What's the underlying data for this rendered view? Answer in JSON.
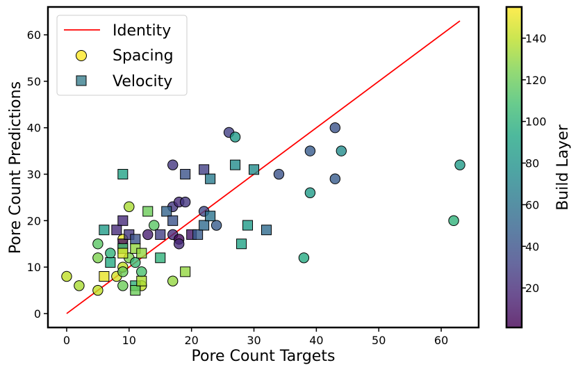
{
  "chart_data": {
    "type": "scatter",
    "xlabel": "Pore Count Targets",
    "ylabel": "Pore Count Predictions",
    "xlim": [
      -3,
      66
    ],
    "ylim": [
      -3,
      66
    ],
    "xticks": [
      0,
      10,
      20,
      30,
      40,
      50,
      60
    ],
    "yticks": [
      0,
      10,
      20,
      30,
      40,
      50,
      60
    ],
    "grid": false,
    "legend_position": "top-left",
    "identity_line": {
      "name": "Identity",
      "x": [
        0,
        63
      ],
      "y": [
        0,
        63
      ],
      "color": "#ff0000"
    },
    "colorbar": {
      "label": "Build Layer",
      "range": [
        1,
        155
      ],
      "ticks": [
        20,
        40,
        60,
        80,
        100,
        120,
        140
      ],
      "colormap": "viridis"
    },
    "legend": [
      {
        "name": "Identity",
        "symbol": "line",
        "color": "#ff0000"
      },
      {
        "name": "Spacing",
        "symbol": "circle",
        "color": "#fde725"
      },
      {
        "name": "Velocity",
        "symbol": "square",
        "color": "#3b7f8f"
      }
    ],
    "series": [
      {
        "name": "Spacing",
        "marker": "circle",
        "points": [
          {
            "x": 0,
            "y": 8,
            "layer": 140
          },
          {
            "x": 2,
            "y": 6,
            "layer": 135
          },
          {
            "x": 5,
            "y": 15,
            "layer": 115
          },
          {
            "x": 5,
            "y": 12,
            "layer": 125
          },
          {
            "x": 5,
            "y": 5,
            "layer": 140
          },
          {
            "x": 7,
            "y": 13,
            "layer": 100
          },
          {
            "x": 8,
            "y": 8,
            "layer": 145
          },
          {
            "x": 9,
            "y": 16,
            "layer": 150
          },
          {
            "x": 9,
            "y": 10,
            "layer": 140
          },
          {
            "x": 9,
            "y": 9,
            "layer": 120
          },
          {
            "x": 9,
            "y": 6,
            "layer": 120
          },
          {
            "x": 10,
            "y": 23,
            "layer": 135
          },
          {
            "x": 10,
            "y": 12,
            "layer": 125
          },
          {
            "x": 11,
            "y": 11,
            "layer": 105
          },
          {
            "x": 12,
            "y": 9,
            "layer": 110
          },
          {
            "x": 12,
            "y": 6,
            "layer": 140
          },
          {
            "x": 13,
            "y": 17,
            "layer": 15
          },
          {
            "x": 14,
            "y": 19,
            "layer": 115
          },
          {
            "x": 17,
            "y": 32,
            "layer": 25
          },
          {
            "x": 17,
            "y": 23,
            "layer": 25
          },
          {
            "x": 17,
            "y": 17,
            "layer": 20
          },
          {
            "x": 17,
            "y": 7,
            "layer": 130
          },
          {
            "x": 18,
            "y": 24,
            "layer": 20
          },
          {
            "x": 18,
            "y": 16,
            "layer": 5
          },
          {
            "x": 18,
            "y": 15,
            "layer": 20
          },
          {
            "x": 19,
            "y": 24,
            "layer": 25
          },
          {
            "x": 22,
            "y": 22,
            "layer": 35
          },
          {
            "x": 24,
            "y": 19,
            "layer": 45
          },
          {
            "x": 26,
            "y": 39,
            "layer": 30
          },
          {
            "x": 27,
            "y": 38,
            "layer": 85
          },
          {
            "x": 34,
            "y": 30,
            "layer": 40
          },
          {
            "x": 38,
            "y": 12,
            "layer": 95
          },
          {
            "x": 39,
            "y": 35,
            "layer": 45
          },
          {
            "x": 39,
            "y": 26,
            "layer": 85
          },
          {
            "x": 43,
            "y": 40,
            "layer": 40
          },
          {
            "x": 43,
            "y": 29,
            "layer": 45
          },
          {
            "x": 44,
            "y": 35,
            "layer": 75
          },
          {
            "x": 62,
            "y": 20,
            "layer": 100
          },
          {
            "x": 63,
            "y": 32,
            "layer": 85
          }
        ]
      },
      {
        "name": "Velocity",
        "marker": "square",
        "points": [
          {
            "x": 6,
            "y": 18,
            "layer": 85
          },
          {
            "x": 6,
            "y": 8,
            "layer": 150
          },
          {
            "x": 7,
            "y": 11,
            "layer": 95
          },
          {
            "x": 8,
            "y": 18,
            "layer": 20
          },
          {
            "x": 9,
            "y": 30,
            "layer": 90
          },
          {
            "x": 9,
            "y": 20,
            "layer": 20
          },
          {
            "x": 9,
            "y": 15,
            "layer": 10
          },
          {
            "x": 9,
            "y": 14,
            "layer": 110
          },
          {
            "x": 9,
            "y": 13,
            "layer": 145
          },
          {
            "x": 10,
            "y": 17,
            "layer": 25
          },
          {
            "x": 11,
            "y": 16,
            "layer": 40
          },
          {
            "x": 11,
            "y": 14,
            "layer": 130
          },
          {
            "x": 11,
            "y": 6,
            "layer": 100
          },
          {
            "x": 11,
            "y": 5,
            "layer": 120
          },
          {
            "x": 12,
            "y": 13,
            "layer": 130
          },
          {
            "x": 12,
            "y": 7,
            "layer": 135
          },
          {
            "x": 13,
            "y": 22,
            "layer": 120
          },
          {
            "x": 15,
            "y": 17,
            "layer": 30
          },
          {
            "x": 15,
            "y": 12,
            "layer": 100
          },
          {
            "x": 16,
            "y": 22,
            "layer": 50
          },
          {
            "x": 17,
            "y": 20,
            "layer": 40
          },
          {
            "x": 19,
            "y": 30,
            "layer": 40
          },
          {
            "x": 19,
            "y": 9,
            "layer": 130
          },
          {
            "x": 20,
            "y": 17,
            "layer": 10
          },
          {
            "x": 21,
            "y": 17,
            "layer": 45
          },
          {
            "x": 22,
            "y": 31,
            "layer": 30
          },
          {
            "x": 22,
            "y": 19,
            "layer": 55
          },
          {
            "x": 23,
            "y": 29,
            "layer": 65
          },
          {
            "x": 23,
            "y": 21,
            "layer": 60
          },
          {
            "x": 27,
            "y": 32,
            "layer": 75
          },
          {
            "x": 28,
            "y": 15,
            "layer": 90
          },
          {
            "x": 29,
            "y": 19,
            "layer": 85
          },
          {
            "x": 30,
            "y": 31,
            "layer": 75
          },
          {
            "x": 32,
            "y": 18,
            "layer": 55
          }
        ]
      }
    ]
  }
}
